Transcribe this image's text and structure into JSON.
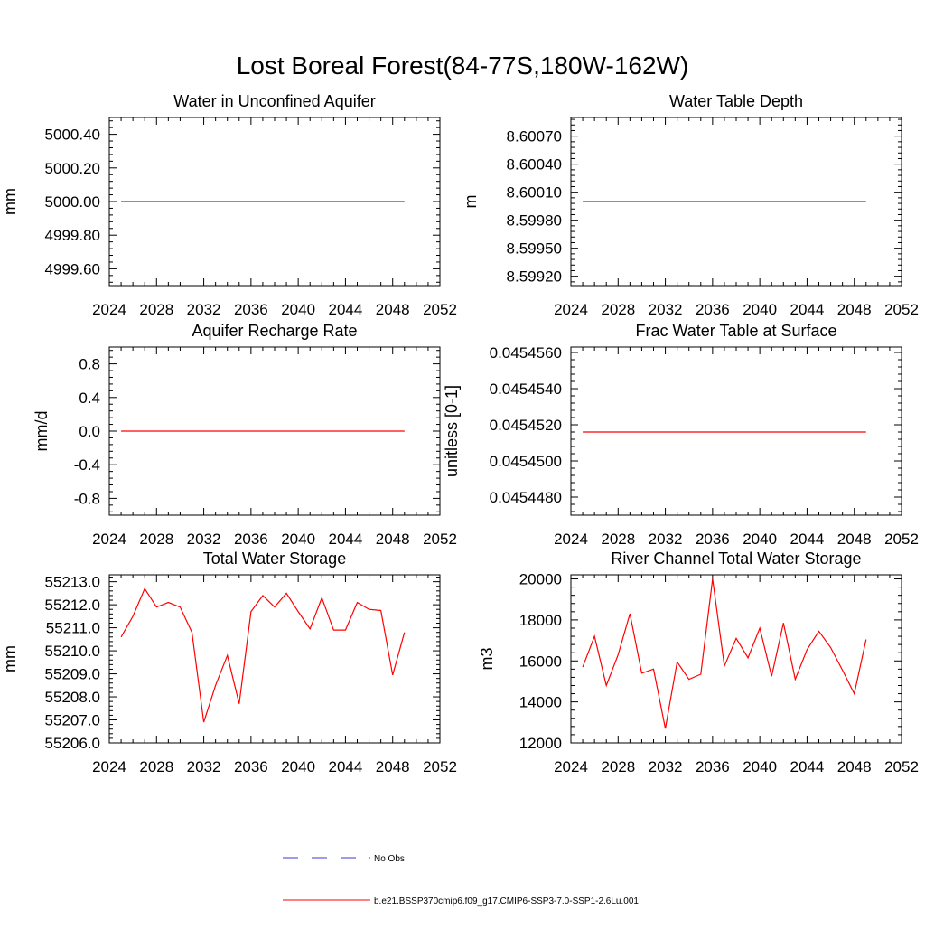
{
  "page_title": "Lost Boreal Forest(84-77S,180W-162W)",
  "legend": {
    "items": [
      {
        "label": "No Obs",
        "color": "#3a3ad0",
        "style": "dashed"
      },
      {
        "label": "b.e21.BSSP370cmip6.f09_g17.CMIP6-SSP3-7.0-SSP1-2.6Lu.001",
        "color": "#ff0000",
        "style": "solid"
      }
    ]
  },
  "chart_data": [
    {
      "type": "line",
      "title": "Water in Unconfined Aquifer",
      "ylabel": "mm",
      "xlabel": "",
      "xlim": [
        2024,
        2052
      ],
      "ylim": [
        4999.5,
        5000.5
      ],
      "xticks": [
        2024,
        2028,
        2032,
        2036,
        2040,
        2044,
        2048,
        2052
      ],
      "xtick_labels": [
        "2024",
        "2028",
        "2032",
        "2036",
        "2040",
        "2044",
        "2048",
        "2052"
      ],
      "yticks": [
        4999.6,
        4999.8,
        5000.0,
        5000.2,
        5000.4
      ],
      "ytick_labels": [
        "4999.60",
        "4999.80",
        "5000.00",
        "5000.20",
        "5000.40"
      ],
      "series": [
        {
          "color": "#ff0000",
          "x": [
            2025,
            2049
          ],
          "y": [
            5000.0,
            5000.0
          ]
        }
      ]
    },
    {
      "type": "line",
      "title": "Water Table Depth",
      "ylabel": "m",
      "xlabel": "",
      "xlim": [
        2024,
        2052
      ],
      "ylim": [
        8.5991,
        8.6009
      ],
      "xticks": [
        2024,
        2028,
        2032,
        2036,
        2040,
        2044,
        2048,
        2052
      ],
      "xtick_labels": [
        "2024",
        "2028",
        "2032",
        "2036",
        "2040",
        "2044",
        "2048",
        "2052"
      ],
      "yticks": [
        8.5992,
        8.5995,
        8.5998,
        8.6001,
        8.6004,
        8.6007
      ],
      "ytick_labels": [
        "8.59920",
        "8.59950",
        "8.59980",
        "8.60010",
        "8.60040",
        "8.60070"
      ],
      "series": [
        {
          "color": "#ff0000",
          "x": [
            2025,
            2049
          ],
          "y": [
            8.6,
            8.6
          ]
        }
      ]
    },
    {
      "type": "line",
      "title": "Aquifer Recharge Rate",
      "ylabel": "mm/d",
      "xlabel": "",
      "xlim": [
        2024,
        2052
      ],
      "ylim": [
        -1.0,
        1.0
      ],
      "xticks": [
        2024,
        2028,
        2032,
        2036,
        2040,
        2044,
        2048,
        2052
      ],
      "xtick_labels": [
        "2024",
        "2028",
        "2032",
        "2036",
        "2040",
        "2044",
        "2048",
        "2052"
      ],
      "yticks": [
        -0.8,
        -0.4,
        0.0,
        0.4,
        0.8
      ],
      "ytick_labels": [
        "-0.8",
        "-0.4",
        "0.0",
        "0.4",
        "0.8"
      ],
      "series": [
        {
          "color": "#ff0000",
          "x": [
            2025,
            2049
          ],
          "y": [
            0.0,
            0.0
          ]
        }
      ]
    },
    {
      "type": "line",
      "title": "Frac Water Table at Surface",
      "ylabel": "unitless [0-1]",
      "xlabel": "",
      "xlim": [
        2024,
        2052
      ],
      "ylim": [
        0.045447,
        0.0454563
      ],
      "xticks": [
        2024,
        2028,
        2032,
        2036,
        2040,
        2044,
        2048,
        2052
      ],
      "xtick_labels": [
        "2024",
        "2028",
        "2032",
        "2036",
        "2040",
        "2044",
        "2048",
        "2052"
      ],
      "yticks": [
        0.045448,
        0.04545,
        0.045452,
        0.045454,
        0.045456
      ],
      "ytick_labels": [
        "0.0454480",
        "0.0454500",
        "0.0454520",
        "0.0454540",
        "0.0454560"
      ],
      "series": [
        {
          "color": "#ff0000",
          "x": [
            2025,
            2049
          ],
          "y": [
            0.0454516,
            0.0454516
          ]
        }
      ]
    },
    {
      "type": "line",
      "title": "Total Water Storage",
      "ylabel": "mm",
      "xlabel": "",
      "xlim": [
        2024,
        2052
      ],
      "ylim": [
        55206.0,
        55213.3
      ],
      "xticks": [
        2024,
        2028,
        2032,
        2036,
        2040,
        2044,
        2048,
        2052
      ],
      "xtick_labels": [
        "2024",
        "2028",
        "2032",
        "2036",
        "2040",
        "2044",
        "2048",
        "2052"
      ],
      "yticks": [
        55206,
        55207,
        55208,
        55209,
        55210,
        55211,
        55212,
        55213
      ],
      "ytick_labels": [
        "55206.0",
        "55207.0",
        "55208.0",
        "55209.0",
        "55210.0",
        "55211.0",
        "55212.0",
        "55213.0"
      ],
      "series": [
        {
          "color": "#ff0000",
          "x": [
            2025,
            2026,
            2027,
            2028,
            2029,
            2030,
            2031,
            2032,
            2033,
            2034,
            2035,
            2036,
            2037,
            2038,
            2039,
            2040,
            2041,
            2042,
            2043,
            2044,
            2045,
            2046,
            2047,
            2048,
            2049
          ],
          "y": [
            55210.6,
            55211.5,
            55212.7,
            55211.9,
            55212.1,
            55211.9,
            55210.8,
            55206.9,
            55208.5,
            55209.8,
            55207.7,
            55211.7,
            55212.4,
            55211.9,
            55212.5,
            55211.7,
            55210.95,
            55212.3,
            55210.9,
            55210.9,
            55212.1,
            55211.8,
            55211.75,
            55208.95,
            55210.8
          ]
        }
      ]
    },
    {
      "type": "line",
      "title": "River Channel Total Water Storage",
      "ylabel": "m3",
      "xlabel": "",
      "xlim": [
        2024,
        2052
      ],
      "ylim": [
        12000,
        20200
      ],
      "xticks": [
        2024,
        2028,
        2032,
        2036,
        2040,
        2044,
        2048,
        2052
      ],
      "xtick_labels": [
        "2024",
        "2028",
        "2032",
        "2036",
        "2040",
        "2044",
        "2048",
        "2052"
      ],
      "yticks": [
        12000,
        14000,
        16000,
        18000,
        20000
      ],
      "ytick_labels": [
        "12000",
        "14000",
        "16000",
        "18000",
        "20000"
      ],
      "series": [
        {
          "color": "#ff0000",
          "x": [
            2025,
            2026,
            2027,
            2028,
            2029,
            2030,
            2031,
            2032,
            2033,
            2034,
            2035,
            2036,
            2037,
            2038,
            2039,
            2040,
            2041,
            2042,
            2043,
            2044,
            2045,
            2046,
            2047,
            2048,
            2049
          ],
          "y": [
            15700,
            17200,
            14800,
            16300,
            18300,
            15400,
            15600,
            12700,
            15950,
            15100,
            15350,
            20000,
            15750,
            17100,
            16150,
            17600,
            15250,
            17850,
            15100,
            16550,
            17450,
            16650,
            15550,
            14400,
            17050
          ]
        }
      ]
    }
  ]
}
